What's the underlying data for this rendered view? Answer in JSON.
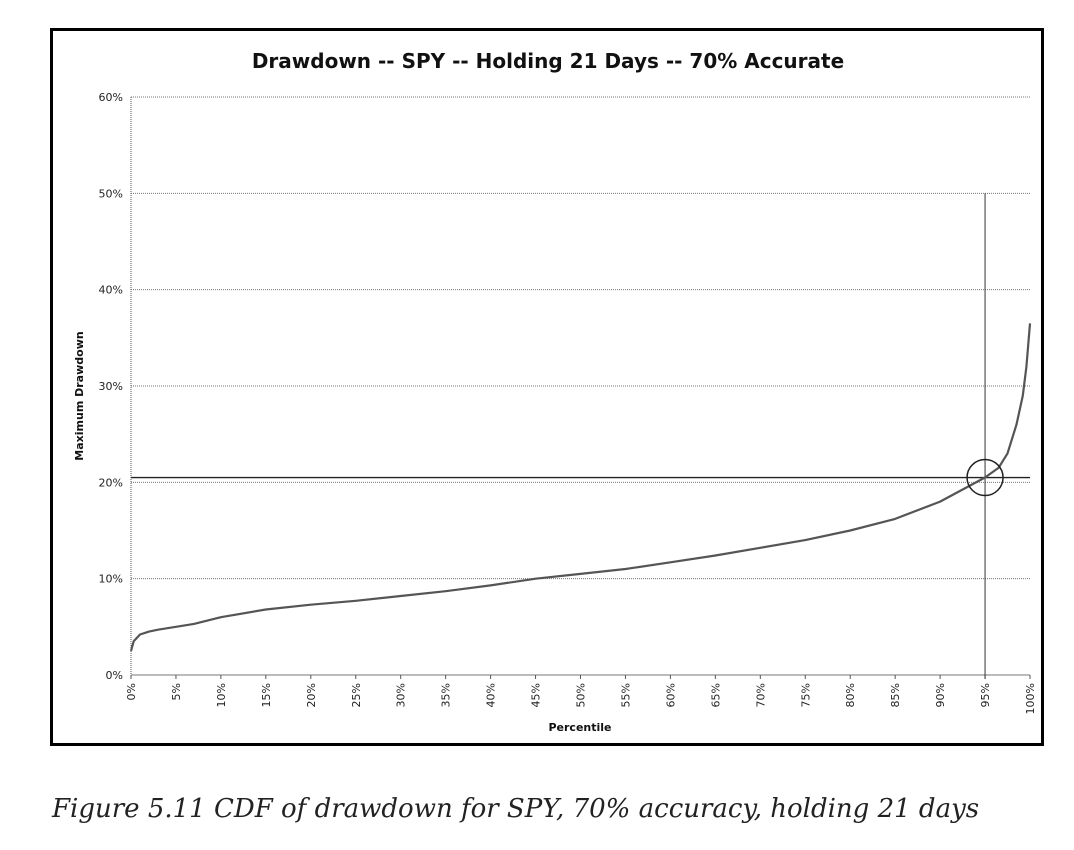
{
  "caption": "Figure 5.11  CDF of drawdown for SPY, 70% accuracy, holding 21 days",
  "chart_data": {
    "type": "line",
    "title": "Drawdown -- SPY -- Holding 21 Days -- 70% Accurate",
    "xlabel": "Percentile",
    "ylabel": "Maximum Drawdown",
    "xlim": [
      0,
      100
    ],
    "ylim": [
      0,
      60
    ],
    "x_ticks": [
      "0%",
      "5%",
      "10%",
      "15%",
      "20%",
      "25%",
      "30%",
      "35%",
      "40%",
      "45%",
      "50%",
      "55%",
      "60%",
      "65%",
      "70%",
      "75%",
      "80%",
      "85%",
      "90%",
      "95%",
      "100%"
    ],
    "y_ticks": [
      "0%",
      "10%",
      "20%",
      "30%",
      "40%",
      "50%",
      "60%"
    ],
    "grid": "horizontal",
    "series": [
      {
        "x": [
          0,
          0.3,
          1,
          2,
          3,
          5,
          7,
          10,
          15,
          20,
          25,
          30,
          35,
          40,
          45,
          50,
          55,
          60,
          65,
          70,
          75,
          80,
          85,
          90,
          93,
          95,
          96.5,
          97.5,
          98.5,
          99.2,
          99.6,
          100
        ],
        "y": [
          2.5,
          3.5,
          4.2,
          4.5,
          4.7,
          5.0,
          5.3,
          6.0,
          6.8,
          7.3,
          7.7,
          8.2,
          8.7,
          9.3,
          10.0,
          10.5,
          11.0,
          11.7,
          12.4,
          13.2,
          14.0,
          15.0,
          16.2,
          18.0,
          19.5,
          20.5,
          21.5,
          23.0,
          26.0,
          29.0,
          32.0,
          36.5
        ]
      }
    ],
    "reference_lines": {
      "x": 95,
      "y": 20.5
    },
    "highlight_circle": {
      "x": 95,
      "y": 20.5
    }
  }
}
